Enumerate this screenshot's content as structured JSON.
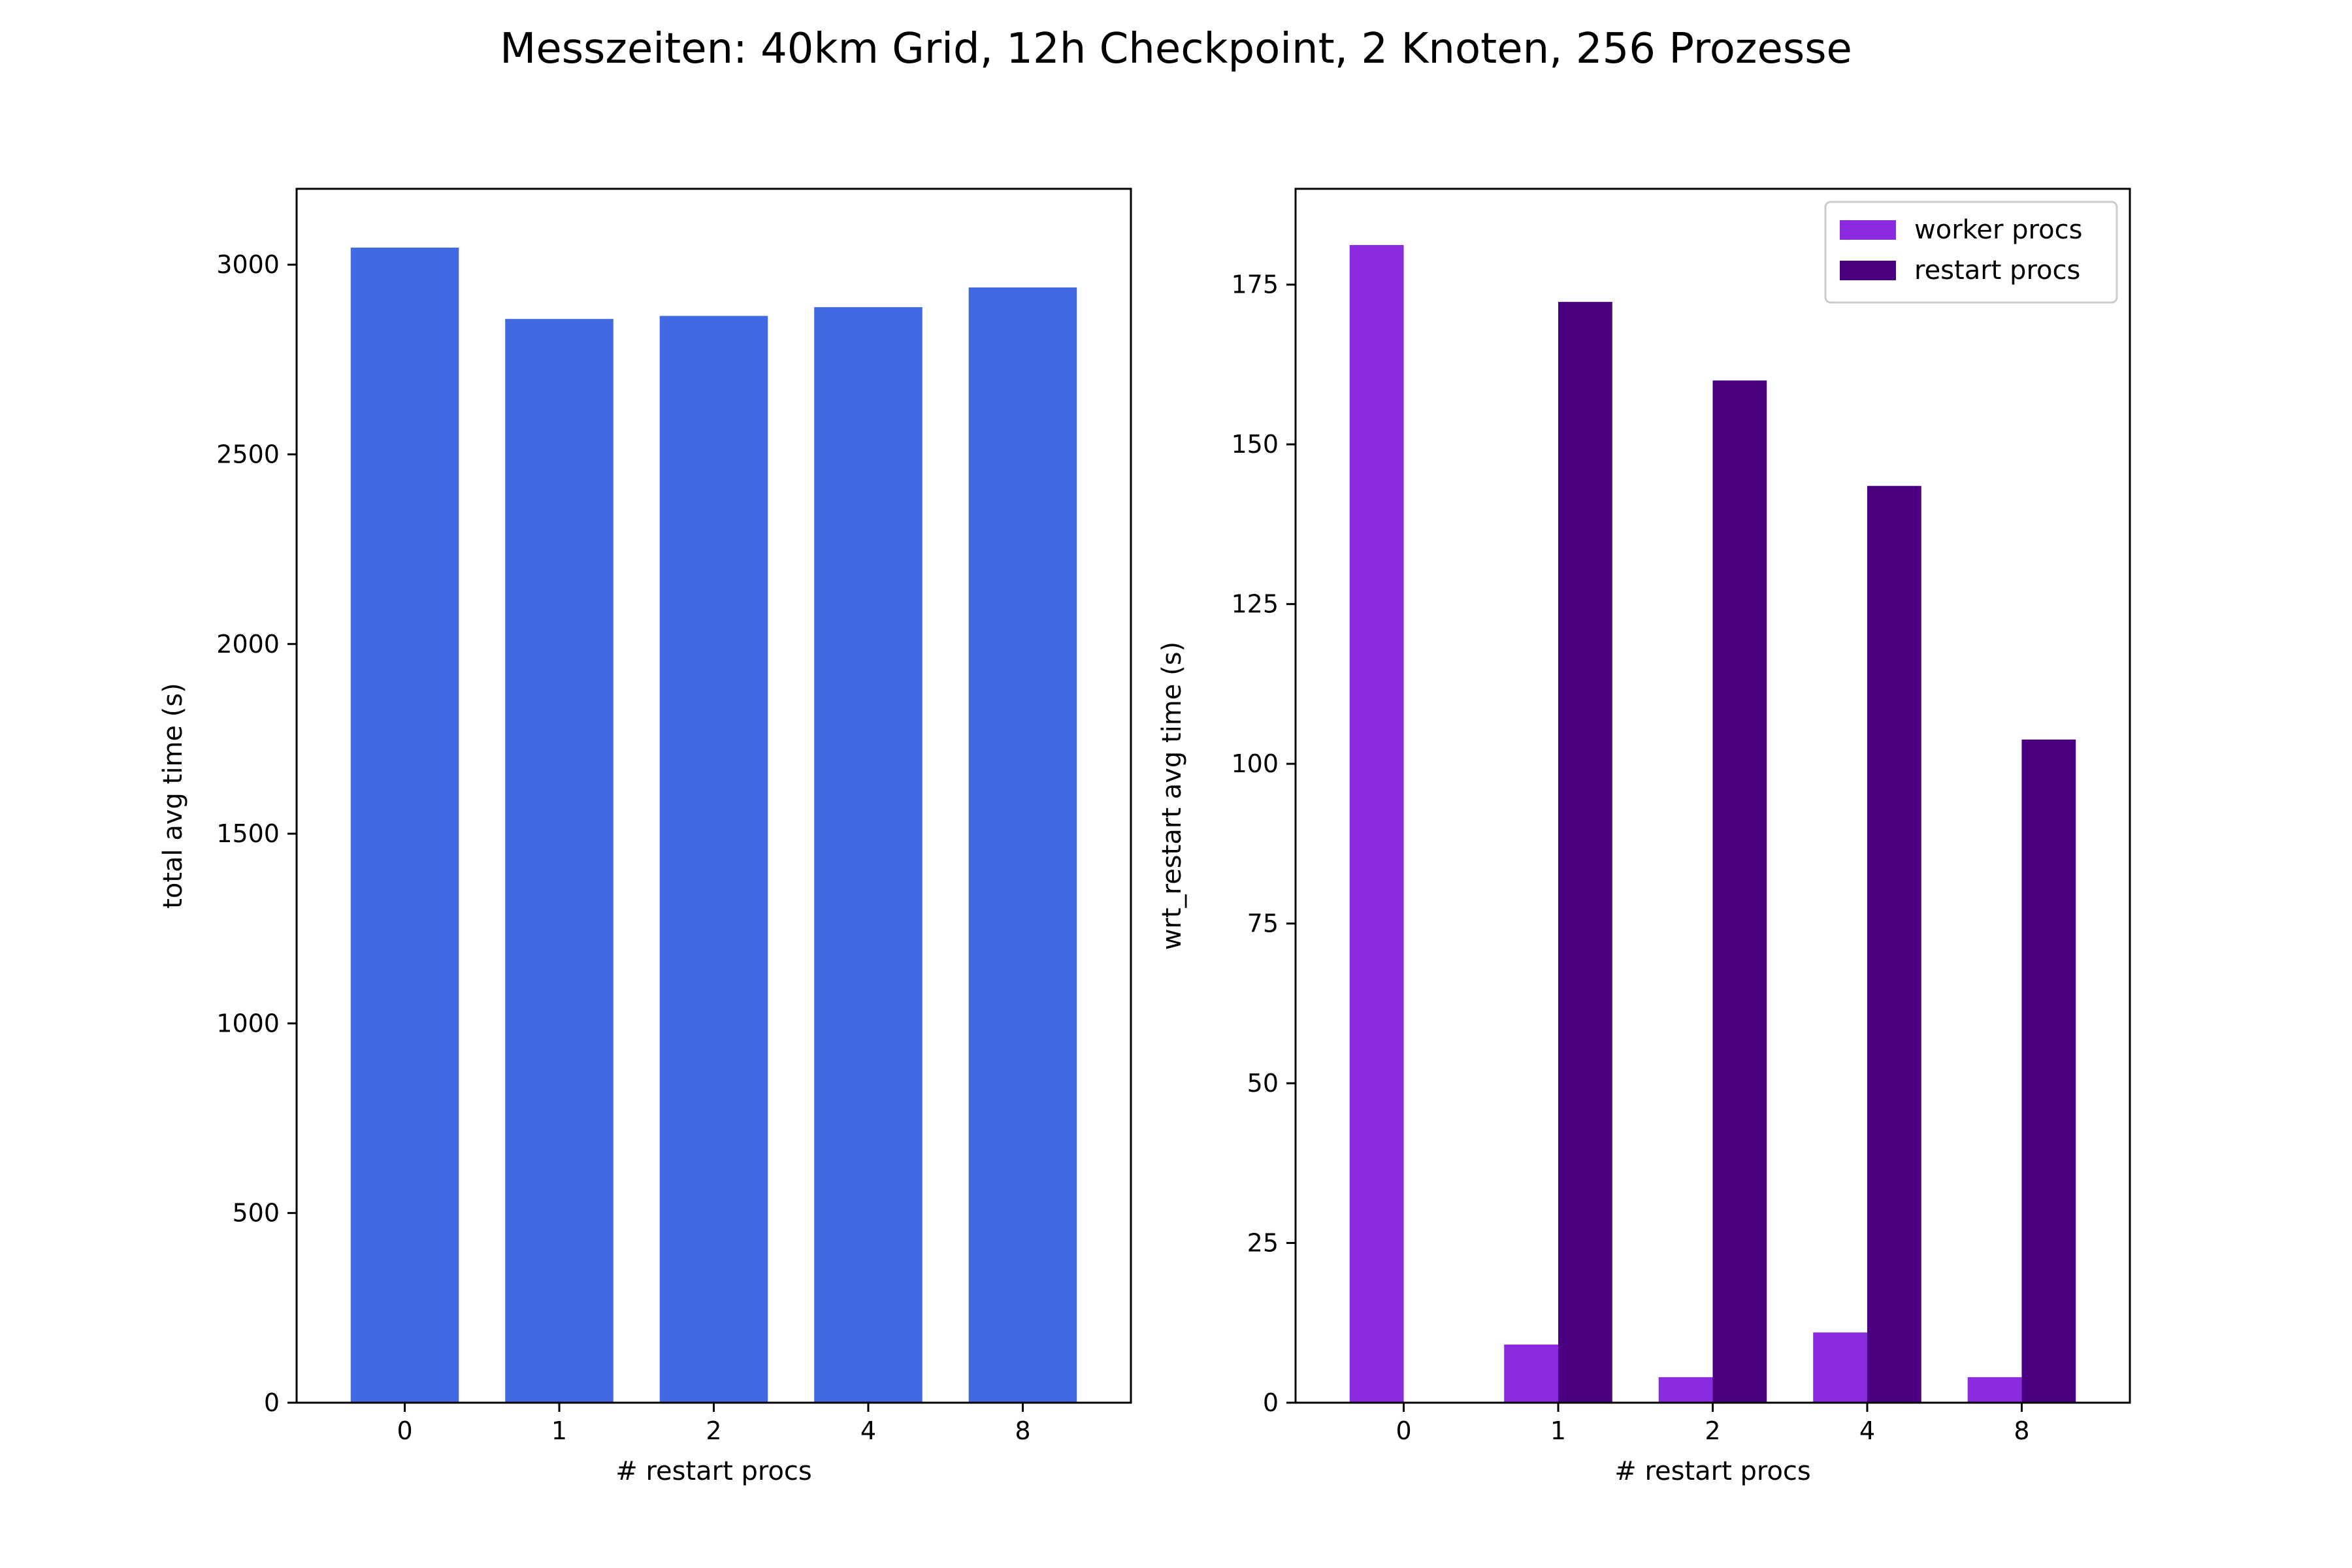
{
  "figure": {
    "title": "Messzeiten: 40km Grid, 12h Checkpoint, 2 Knoten, 256 Prozesse"
  },
  "chart_data": [
    {
      "type": "bar",
      "categories": [
        "0",
        "1",
        "2",
        "4",
        "8"
      ],
      "series": [
        {
          "values": [
            3045,
            2857,
            2865,
            2888,
            2940
          ],
          "color": "#4169e1"
        }
      ],
      "xlabel": "# restart procs",
      "ylabel": "total avg time (s)",
      "ylim": [
        0,
        3200
      ],
      "yticks": [
        0,
        500,
        1000,
        1500,
        2000,
        2500,
        3000
      ],
      "grid": false,
      "legend": null
    },
    {
      "type": "bar",
      "categories": [
        "0",
        "1",
        "2",
        "4",
        "8"
      ],
      "series": [
        {
          "name": "worker procs",
          "values": [
            181.2,
            9.1,
            4.0,
            11.0,
            4.0
          ],
          "color": "#8a2be2"
        },
        {
          "name": "restart procs",
          "values": [
            0,
            172.3,
            160.0,
            143.5,
            103.8
          ],
          "color": "#4b0082"
        }
      ],
      "xlabel": "# restart procs",
      "ylabel": "wrt_restart avg time (s)",
      "ylim": [
        0,
        190
      ],
      "yticks": [
        0,
        25,
        50,
        75,
        100,
        125,
        150,
        175
      ],
      "grid": false,
      "legend": "top-right"
    }
  ]
}
